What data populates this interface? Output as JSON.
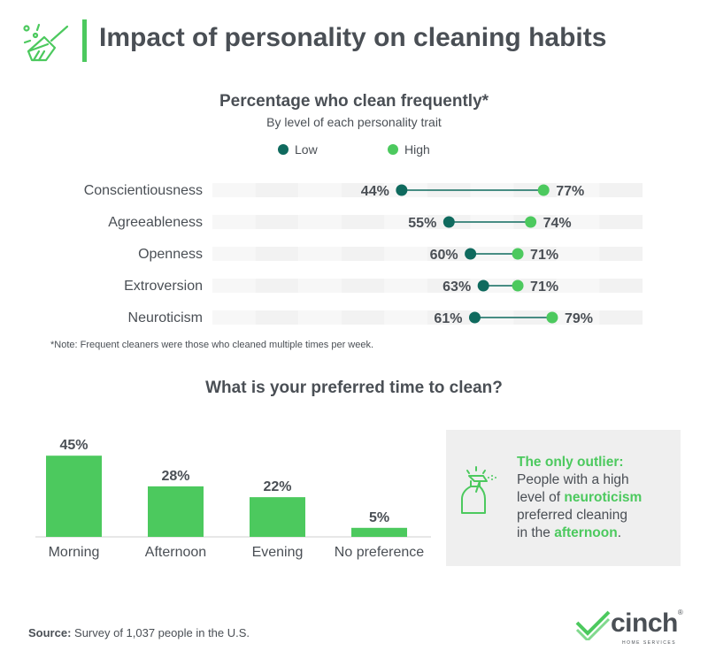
{
  "header": {
    "title": "Impact of personality on cleaning habits",
    "icon": "broom-icon"
  },
  "colors": {
    "low": "#0f6a5e",
    "high": "#4cc95e",
    "text": "#4a4f55",
    "bar": "#4cc95e",
    "track": "#f2f2f2"
  },
  "chart_data": [
    {
      "type": "dumbbell",
      "title": "Percentage who clean frequently*",
      "subtitle": "By level of each personality trait",
      "legend": [
        "Low",
        "High"
      ],
      "legend_position": "top",
      "categories": [
        "Conscientiousness",
        "Agreeableness",
        "Openness",
        "Extroversion",
        "Neuroticism"
      ],
      "series": [
        {
          "name": "Low",
          "values": [
            44,
            55,
            60,
            63,
            61
          ]
        },
        {
          "name": "High",
          "values": [
            77,
            74,
            71,
            71,
            79
          ]
        }
      ],
      "value_labels": {
        "low": [
          "44%",
          "55%",
          "60%",
          "63%",
          "61%"
        ],
        "high": [
          "77%",
          "74%",
          "71%",
          "71%",
          "79%"
        ]
      },
      "xlim": [
        0,
        100
      ],
      "note": "*Note: Frequent cleaners were those who cleaned multiple times per week."
    },
    {
      "type": "bar",
      "title": "What is your preferred time to clean?",
      "categories": [
        "Morning",
        "Afternoon",
        "Evening",
        "No preference"
      ],
      "values": [
        45,
        28,
        22,
        5
      ],
      "value_labels": [
        "45%",
        "28%",
        "22%",
        "5%"
      ],
      "ylim": [
        0,
        50
      ]
    }
  ],
  "callout": {
    "heading": "The only outlier:",
    "line1": "People with a high",
    "line2_pre": "level of ",
    "line2_hl": "neuroticism",
    "line3": "preferred cleaning",
    "line4_pre": "in the ",
    "line4_hl": "afternoon",
    "line4_post": ".",
    "icon": "spray-bottle-icon"
  },
  "footer": {
    "source_label": "Source:",
    "source_text": " Survey of 1,037 people in the U.S.",
    "logo_word": "cinch",
    "logo_sub": "HOME SERVICES",
    "logo_mark": "®"
  }
}
